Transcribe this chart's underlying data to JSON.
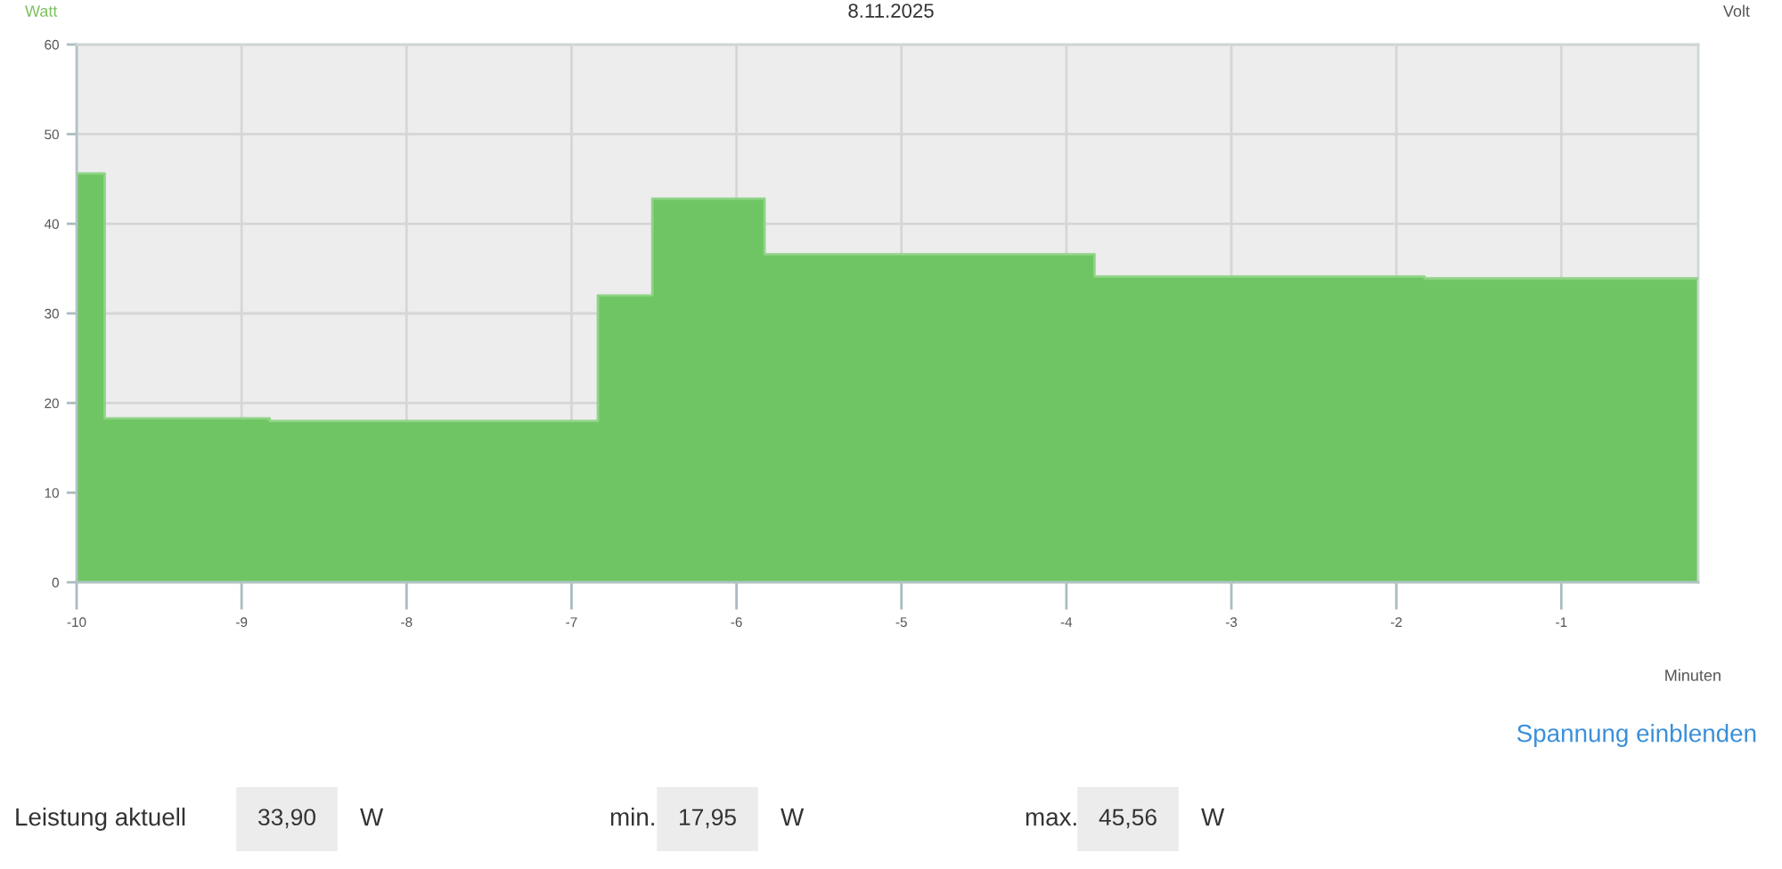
{
  "chart_data": {
    "type": "area",
    "title": "8.11.2025",
    "xlabel": "Minuten",
    "ylabel": "Watt",
    "y2label": "Volt",
    "x": [
      -10,
      -9.83,
      -9.83,
      -8.83,
      -8.83,
      -6.84,
      -6.84,
      -6.51,
      -6.51,
      -5.83,
      -5.83,
      -3.83,
      -3.83,
      -1.83,
      -1.83,
      -0.17
    ],
    "values": [
      45.6,
      45.6,
      18.3,
      18.3,
      18.0,
      18.0,
      32.0,
      32.0,
      42.8,
      42.8,
      36.6,
      36.6,
      34.1,
      34.1,
      33.9,
      33.9
    ],
    "color": "#6fc563",
    "xlim": [
      -10,
      -0.17
    ],
    "xticks": [
      -10,
      -9,
      -8,
      -7,
      -6,
      -5,
      -4,
      -3,
      -2,
      -1
    ],
    "ylim": [
      0,
      60
    ],
    "yticks": [
      0,
      10,
      20,
      30,
      40,
      50,
      60
    ],
    "grid": true,
    "annotations": [
      "Spannung einblenden",
      "Leistung aktuell",
      "33,90",
      "W",
      "min.",
      "17,95",
      "W",
      "max.",
      "45,56",
      "W"
    ]
  }
}
